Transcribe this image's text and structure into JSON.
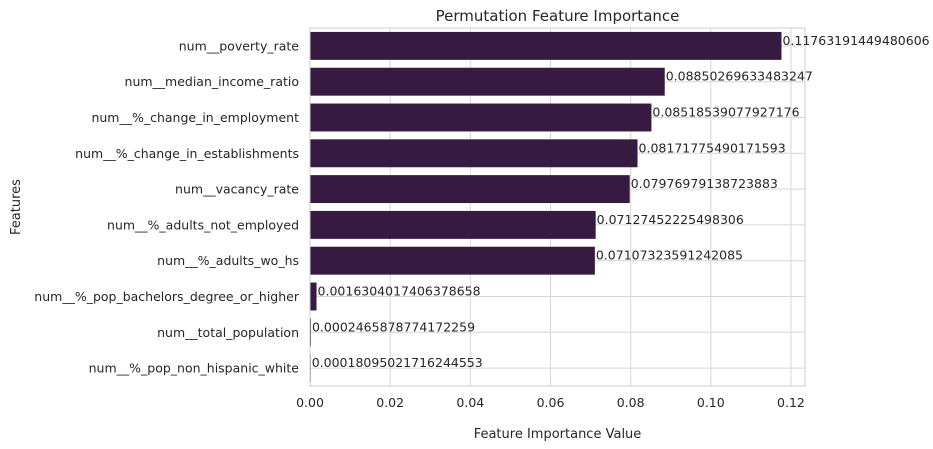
{
  "chart_data": {
    "type": "bar",
    "orientation": "horizontal",
    "title": "Permutation Feature Importance",
    "xlabel": "Feature Importance Value",
    "ylabel": "Features",
    "xlim": [
      0,
      0.1235
    ],
    "xticks": [
      0.0,
      0.02,
      0.04,
      0.06,
      0.08,
      0.1,
      0.12
    ],
    "xtick_labels": [
      "0.00",
      "0.02",
      "0.04",
      "0.06",
      "0.08",
      "0.10",
      "0.12"
    ],
    "grid": true,
    "bar_color": "#361a41",
    "categories": [
      "num__poverty_rate",
      "num__median_income_ratio",
      "num__%_change_in_employment",
      "num__%_change_in_establishments",
      "num__vacancy_rate",
      "num__%_adults_not_employed",
      "num__%_adults_wo_hs",
      "num__%_pop_bachelors_degree_or_higher",
      "num__total_population",
      "num__%_pop_non_hispanic_white"
    ],
    "values": [
      0.11763191449480606,
      0.08850269633483247,
      0.08518539077927176,
      0.08171775490171593,
      0.07976979138723883,
      0.07127452225498306,
      0.07107323591242085,
      0.0016304017406378658,
      0.0002465878774172259,
      0.00018095021716244553
    ],
    "value_labels": [
      "0.11763191449480606",
      "0.08850269633483247",
      "0.08518539077927176",
      "0.08171775490171593",
      "0.07976979138723883",
      "0.07127452225498306",
      "0.07107323591242085",
      "0.0016304017406378658",
      "0.0002465878774172259",
      "0.00018095021716244553"
    ]
  }
}
